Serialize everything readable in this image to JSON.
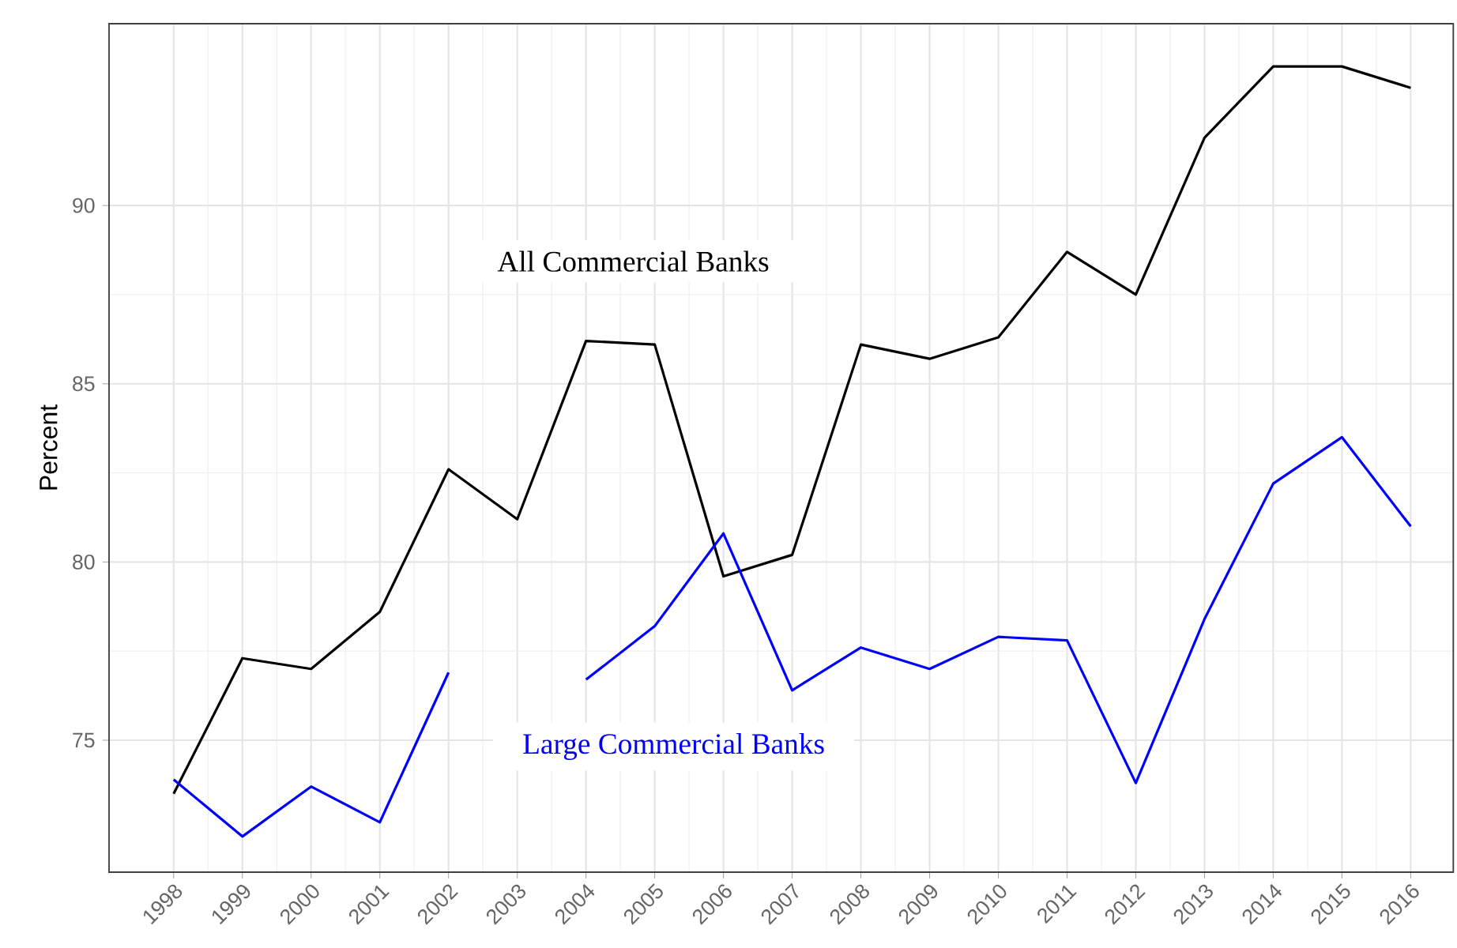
{
  "chart_data": {
    "type": "line",
    "ylabel": "Percent",
    "x": [
      1998,
      1999,
      2000,
      2001,
      2002,
      2003,
      2004,
      2005,
      2006,
      2007,
      2008,
      2009,
      2010,
      2011,
      2012,
      2013,
      2014,
      2015,
      2016
    ],
    "series": [
      {
        "name": "All Commercial Banks",
        "color": "#000000",
        "values": [
          73.5,
          77.3,
          77.0,
          78.6,
          82.6,
          81.2,
          86.2,
          86.1,
          79.6,
          80.2,
          86.1,
          85.7,
          86.3,
          88.7,
          87.5,
          91.9,
          93.9,
          93.9,
          93.3
        ]
      },
      {
        "name": "Large Commercial Banks",
        "color": "#0000ff",
        "values": [
          73.9,
          72.3,
          73.7,
          72.7,
          76.9,
          null,
          76.7,
          78.2,
          80.8,
          76.4,
          77.6,
          77.0,
          77.9,
          77.8,
          73.8,
          78.4,
          82.2,
          83.5,
          81.0
        ]
      }
    ],
    "xlim": [
      1997.06,
      2016.62
    ],
    "ylim": [
      71.3,
      95.1
    ],
    "xticks": [
      1998,
      1999,
      2000,
      2001,
      2002,
      2003,
      2004,
      2005,
      2006,
      2007,
      2008,
      2009,
      2010,
      2011,
      2012,
      2013,
      2014,
      2015,
      2016
    ],
    "yticks": [
      75,
      80,
      85,
      90
    ],
    "grid": true,
    "legend": false,
    "marker": "none",
    "line_style": "solid"
  }
}
